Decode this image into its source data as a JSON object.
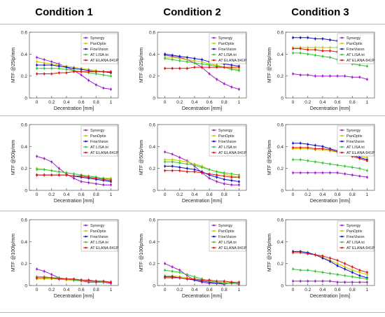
{
  "headers": [
    "Condition 1",
    "Condition 2",
    "Condition 3"
  ],
  "series_colors": {
    "Synergy": "#a020c8",
    "PanOptix": "#c8c800",
    "FineVision": "#1414c8",
    "AT LISA tri": "#32c832",
    "AT ELANA 841P": "#e01414"
  },
  "chart_data": [
    {
      "type": "line",
      "condition": "Condition 1",
      "xlabel": "Decentration [mm]",
      "ylabel": "MTF @25lp/mm",
      "ylim": [
        0,
        0.6
      ],
      "xticks": [
        "0",
        "0.2",
        "0.4",
        "0.6",
        "0.8",
        "1"
      ],
      "yticks": [
        "0",
        "0.2",
        "0.4",
        "0.6"
      ],
      "x": [
        0,
        0.1,
        0.2,
        0.3,
        0.4,
        0.5,
        0.6,
        0.7,
        0.8,
        0.9,
        1.0
      ],
      "series": [
        {
          "name": "Synergy",
          "values": [
            0.37,
            0.35,
            0.33,
            0.31,
            0.28,
            0.25,
            0.21,
            0.16,
            0.12,
            0.09,
            0.08
          ]
        },
        {
          "name": "PanOptix",
          "values": [
            0.33,
            0.32,
            0.31,
            0.3,
            0.29,
            0.28,
            0.27,
            0.26,
            0.25,
            0.24,
            0.23
          ]
        },
        {
          "name": "FineVision",
          "values": [
            0.3,
            0.3,
            0.3,
            0.29,
            0.28,
            0.27,
            0.26,
            0.25,
            0.24,
            0.24,
            0.23
          ]
        },
        {
          "name": "AT LISA tri",
          "values": [
            0.27,
            0.27,
            0.27,
            0.27,
            0.26,
            0.25,
            0.24,
            0.23,
            0.22,
            0.21,
            0.2
          ]
        },
        {
          "name": "AT ELANA 841P",
          "values": [
            0.22,
            0.22,
            0.22,
            0.23,
            0.23,
            0.24,
            0.24,
            0.24,
            0.24,
            0.24,
            0.24
          ]
        }
      ]
    },
    {
      "type": "line",
      "condition": "Condition 2",
      "xlabel": "Decentration [mm]",
      "ylabel": "MTF @25lp/mm",
      "ylim": [
        0,
        0.6
      ],
      "xticks": [
        "0",
        "0.2",
        "0.4",
        "0.6",
        "0.8",
        "1"
      ],
      "yticks": [
        "0",
        "0.2",
        "0.4",
        "0.6"
      ],
      "x": [
        0,
        0.1,
        0.2,
        0.3,
        0.4,
        0.5,
        0.6,
        0.7,
        0.8,
        0.9,
        1.0
      ],
      "series": [
        {
          "name": "Synergy",
          "values": [
            0.39,
            0.38,
            0.37,
            0.35,
            0.32,
            0.28,
            0.22,
            0.17,
            0.13,
            0.1,
            0.08
          ]
        },
        {
          "name": "PanOptix",
          "values": [
            0.37,
            0.37,
            0.36,
            0.35,
            0.34,
            0.33,
            0.31,
            0.3,
            0.28,
            0.27,
            0.26
          ]
        },
        {
          "name": "FineVision",
          "values": [
            0.4,
            0.39,
            0.38,
            0.37,
            0.36,
            0.35,
            0.33,
            0.32,
            0.31,
            0.3,
            0.29
          ]
        },
        {
          "name": "AT LISA tri",
          "values": [
            0.36,
            0.35,
            0.34,
            0.33,
            0.32,
            0.31,
            0.3,
            0.29,
            0.28,
            0.26,
            0.25
          ]
        },
        {
          "name": "AT ELANA 841P",
          "values": [
            0.27,
            0.27,
            0.27,
            0.27,
            0.28,
            0.28,
            0.28,
            0.28,
            0.28,
            0.28,
            0.28
          ]
        }
      ]
    },
    {
      "type": "line",
      "condition": "Condition 3",
      "xlabel": "Decentration [mm]",
      "ylabel": "MTF @25lp/mm",
      "ylim": [
        0,
        0.6
      ],
      "xticks": [
        "0",
        "0.2",
        "0.4",
        "0.6",
        "0.8",
        "1"
      ],
      "yticks": [
        "0",
        "0.2",
        "0.4",
        "0.6"
      ],
      "x": [
        0,
        0.1,
        0.2,
        0.3,
        0.4,
        0.5,
        0.6,
        0.7,
        0.8,
        0.9,
        1.0
      ],
      "series": [
        {
          "name": "Synergy",
          "values": [
            0.22,
            0.21,
            0.21,
            0.2,
            0.2,
            0.2,
            0.2,
            0.2,
            0.19,
            0.19,
            0.17
          ]
        },
        {
          "name": "PanOptix",
          "values": [
            0.46,
            0.46,
            0.46,
            0.46,
            0.46,
            0.46,
            0.46,
            0.46,
            0.45,
            0.45,
            0.44
          ]
        },
        {
          "name": "FineVision",
          "values": [
            0.55,
            0.55,
            0.55,
            0.54,
            0.54,
            0.53,
            0.52,
            0.51,
            0.5,
            0.49,
            0.48
          ]
        },
        {
          "name": "AT LISA tri",
          "values": [
            0.41,
            0.41,
            0.4,
            0.39,
            0.38,
            0.37,
            0.35,
            0.33,
            0.31,
            0.3,
            0.29
          ]
        },
        {
          "name": "AT ELANA 841P",
          "values": [
            0.45,
            0.45,
            0.44,
            0.44,
            0.43,
            0.43,
            0.42,
            0.42,
            0.41,
            0.41,
            0.4
          ]
        }
      ]
    },
    {
      "type": "line",
      "condition": "Condition 1",
      "xlabel": "Decentration [mm]",
      "ylabel": "MTF @50lp/mm",
      "ylim": [
        0,
        0.6
      ],
      "xticks": [
        "0",
        "0.2",
        "0.4",
        "0.6",
        "0.8",
        "1"
      ],
      "yticks": [
        "0",
        "0.2",
        "0.4",
        "0.6"
      ],
      "x": [
        0,
        0.1,
        0.2,
        0.3,
        0.4,
        0.5,
        0.6,
        0.7,
        0.8,
        0.9,
        1.0
      ],
      "series": [
        {
          "name": "Synergy",
          "values": [
            0.31,
            0.29,
            0.26,
            0.2,
            0.15,
            0.11,
            0.08,
            0.07,
            0.06,
            0.05,
            0.05
          ]
        },
        {
          "name": "PanOptix",
          "values": [
            0.2,
            0.19,
            0.18,
            0.17,
            0.16,
            0.15,
            0.14,
            0.13,
            0.12,
            0.11,
            0.11
          ]
        },
        {
          "name": "FineVision",
          "values": [
            0.14,
            0.14,
            0.14,
            0.14,
            0.14,
            0.13,
            0.12,
            0.11,
            0.1,
            0.09,
            0.08
          ]
        },
        {
          "name": "AT LISA tri",
          "values": [
            0.19,
            0.19,
            0.18,
            0.17,
            0.16,
            0.15,
            0.14,
            0.13,
            0.12,
            0.11,
            0.1
          ]
        },
        {
          "name": "AT ELANA 841P",
          "values": [
            0.14,
            0.14,
            0.14,
            0.14,
            0.14,
            0.13,
            0.13,
            0.12,
            0.11,
            0.1,
            0.09
          ]
        }
      ]
    },
    {
      "type": "line",
      "condition": "Condition 2",
      "xlabel": "Decentration [mm]",
      "ylabel": "MTF @50lp/mm",
      "ylim": [
        0,
        0.6
      ],
      "xticks": [
        "0",
        "0.2",
        "0.4",
        "0.6",
        "0.8",
        "1"
      ],
      "yticks": [
        "0",
        "0.2",
        "0.4",
        "0.6"
      ],
      "x": [
        0,
        0.1,
        0.2,
        0.3,
        0.4,
        0.5,
        0.6,
        0.7,
        0.8,
        0.9,
        1.0
      ],
      "series": [
        {
          "name": "Synergy",
          "values": [
            0.35,
            0.33,
            0.3,
            0.27,
            0.22,
            0.16,
            0.11,
            0.08,
            0.06,
            0.05,
            0.05
          ]
        },
        {
          "name": "PanOptix",
          "values": [
            0.28,
            0.28,
            0.27,
            0.26,
            0.24,
            0.22,
            0.19,
            0.17,
            0.15,
            0.13,
            0.12
          ]
        },
        {
          "name": "FineVision",
          "values": [
            0.22,
            0.22,
            0.21,
            0.2,
            0.19,
            0.17,
            0.14,
            0.12,
            0.1,
            0.09,
            0.08
          ]
        },
        {
          "name": "AT LISA tri",
          "values": [
            0.26,
            0.26,
            0.25,
            0.24,
            0.23,
            0.21,
            0.19,
            0.17,
            0.16,
            0.15,
            0.14
          ]
        },
        {
          "name": "AT ELANA 841P",
          "values": [
            0.18,
            0.18,
            0.18,
            0.17,
            0.17,
            0.16,
            0.15,
            0.14,
            0.13,
            0.12,
            0.12
          ]
        }
      ]
    },
    {
      "type": "line",
      "condition": "Condition 3",
      "xlabel": "Decentration [mm]",
      "ylabel": "MTF @50lp/mm",
      "ylim": [
        0,
        0.6
      ],
      "xticks": [
        "0",
        "0.2",
        "0.4",
        "0.6",
        "0.8",
        "1"
      ],
      "yticks": [
        "0",
        "0.2",
        "0.4",
        "0.6"
      ],
      "x": [
        0,
        0.1,
        0.2,
        0.3,
        0.4,
        0.5,
        0.6,
        0.7,
        0.8,
        0.9,
        1.0
      ],
      "series": [
        {
          "name": "Synergy",
          "values": [
            0.16,
            0.16,
            0.16,
            0.16,
            0.16,
            0.16,
            0.16,
            0.15,
            0.14,
            0.13,
            0.12
          ]
        },
        {
          "name": "PanOptix",
          "values": [
            0.38,
            0.38,
            0.38,
            0.37,
            0.37,
            0.36,
            0.35,
            0.34,
            0.33,
            0.31,
            0.3
          ]
        },
        {
          "name": "FineVision",
          "values": [
            0.43,
            0.43,
            0.42,
            0.41,
            0.4,
            0.38,
            0.36,
            0.34,
            0.32,
            0.3,
            0.28
          ]
        },
        {
          "name": "AT LISA tri",
          "values": [
            0.28,
            0.28,
            0.27,
            0.26,
            0.25,
            0.24,
            0.23,
            0.22,
            0.21,
            0.2,
            0.18
          ]
        },
        {
          "name": "AT ELANA 841P",
          "values": [
            0.39,
            0.39,
            0.39,
            0.38,
            0.38,
            0.37,
            0.35,
            0.33,
            0.31,
            0.29,
            0.27
          ]
        }
      ]
    },
    {
      "type": "line",
      "condition": "Condition 1",
      "xlabel": "Decentration [mm]",
      "ylabel": "MTF @100lp/mm",
      "ylim": [
        0,
        0.6
      ],
      "xticks": [
        "0",
        "0.2",
        "0.4",
        "0.6",
        "0.8",
        "1"
      ],
      "yticks": [
        "0",
        "0.2",
        "0.4",
        "0.6"
      ],
      "x": [
        0,
        0.1,
        0.2,
        0.3,
        0.4,
        0.5,
        0.6,
        0.7,
        0.8,
        0.9,
        1.0
      ],
      "series": [
        {
          "name": "Synergy",
          "values": [
            0.15,
            0.13,
            0.1,
            0.07,
            0.06,
            0.05,
            0.04,
            0.03,
            0.03,
            0.03,
            0.02
          ]
        },
        {
          "name": "PanOptix",
          "values": [
            0.06,
            0.06,
            0.06,
            0.06,
            0.05,
            0.05,
            0.04,
            0.04,
            0.04,
            0.03,
            0.03
          ]
        },
        {
          "name": "FineVision",
          "values": [
            0.07,
            0.07,
            0.07,
            0.06,
            0.06,
            0.05,
            0.05,
            0.04,
            0.04,
            0.03,
            0.03
          ]
        },
        {
          "name": "AT LISA tri",
          "values": [
            0.08,
            0.08,
            0.07,
            0.07,
            0.06,
            0.05,
            0.05,
            0.04,
            0.04,
            0.03,
            0.03
          ]
        },
        {
          "name": "AT ELANA 841P",
          "values": [
            0.07,
            0.07,
            0.07,
            0.06,
            0.06,
            0.06,
            0.05,
            0.05,
            0.04,
            0.04,
            0.03
          ]
        }
      ]
    },
    {
      "type": "line",
      "condition": "Condition 2",
      "xlabel": "Decentration [mm]",
      "ylabel": "MTF @100lp/mm",
      "ylim": [
        0,
        0.6
      ],
      "xticks": [
        "0",
        "0.2",
        "0.4",
        "0.6",
        "0.8",
        "1"
      ],
      "yticks": [
        "0",
        "0.2",
        "0.4",
        "0.6"
      ],
      "x": [
        0,
        0.1,
        0.2,
        0.3,
        0.4,
        0.5,
        0.6,
        0.7,
        0.8,
        0.9,
        1.0
      ],
      "series": [
        {
          "name": "Synergy",
          "values": [
            0.2,
            0.17,
            0.14,
            0.09,
            0.05,
            0.03,
            0.02,
            0.02,
            0.01,
            0.03,
            0.01
          ]
        },
        {
          "name": "PanOptix",
          "values": [
            0.09,
            0.09,
            0.08,
            0.07,
            0.06,
            0.05,
            0.04,
            0.03,
            0.03,
            0.02,
            0.02
          ]
        },
        {
          "name": "FineVision",
          "values": [
            0.08,
            0.08,
            0.07,
            0.06,
            0.05,
            0.04,
            0.03,
            0.02,
            0.02,
            0.02,
            0.02
          ]
        },
        {
          "name": "AT LISA tri",
          "values": [
            0.14,
            0.13,
            0.12,
            0.1,
            0.08,
            0.06,
            0.04,
            0.03,
            0.02,
            0.02,
            0.02
          ]
        },
        {
          "name": "AT ELANA 841P",
          "values": [
            0.07,
            0.07,
            0.07,
            0.06,
            0.06,
            0.05,
            0.05,
            0.04,
            0.04,
            0.03,
            0.03
          ]
        }
      ]
    },
    {
      "type": "line",
      "condition": "Condition 3",
      "xlabel": "Decentration [mm]",
      "ylabel": "MTF @100lp/mm",
      "ylim": [
        0,
        0.6
      ],
      "xticks": [
        "0",
        "0.2",
        "0.4",
        "0.6",
        "0.8",
        "1"
      ],
      "yticks": [
        "0",
        "0.2",
        "0.4",
        "0.6"
      ],
      "x": [
        0,
        0.1,
        0.2,
        0.3,
        0.4,
        0.5,
        0.6,
        0.7,
        0.8,
        0.9,
        1.0
      ],
      "series": [
        {
          "name": "Synergy",
          "values": [
            0.04,
            0.04,
            0.04,
            0.04,
            0.04,
            0.04,
            0.03,
            0.03,
            0.03,
            0.03,
            0.03
          ]
        },
        {
          "name": "PanOptix",
          "values": [
            0.31,
            0.31,
            0.3,
            0.28,
            0.26,
            0.23,
            0.2,
            0.17,
            0.14,
            0.12,
            0.1
          ]
        },
        {
          "name": "FineVision",
          "values": [
            0.31,
            0.31,
            0.3,
            0.28,
            0.25,
            0.22,
            0.18,
            0.15,
            0.12,
            0.09,
            0.07
          ]
        },
        {
          "name": "AT LISA tri",
          "values": [
            0.15,
            0.14,
            0.14,
            0.13,
            0.12,
            0.11,
            0.1,
            0.09,
            0.08,
            0.07,
            0.06
          ]
        },
        {
          "name": "AT ELANA 841P",
          "values": [
            0.3,
            0.3,
            0.29,
            0.28,
            0.27,
            0.25,
            0.23,
            0.2,
            0.17,
            0.14,
            0.12
          ]
        }
      ]
    }
  ]
}
